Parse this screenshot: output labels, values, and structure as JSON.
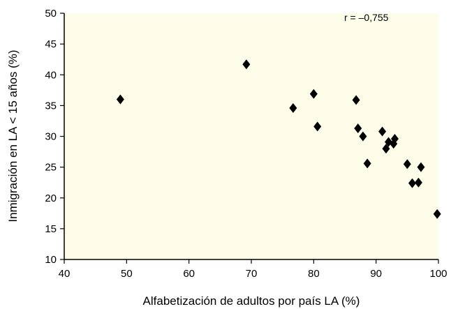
{
  "chart_data": {
    "type": "scatter",
    "title": "",
    "xlabel": "Alfabetización de adultos por país LA (%)",
    "ylabel": "Inmigración en LA < 15 años (%)",
    "xlim": [
      40,
      100
    ],
    "ylim": [
      10,
      50
    ],
    "xticks": [
      "40",
      "50",
      "60",
      "70",
      "80",
      "90",
      "100"
    ],
    "yticks": [
      "10",
      "15",
      "20",
      "25",
      "30",
      "35",
      "40",
      "45",
      "50"
    ],
    "annotation": "r = –0,755",
    "grid": false,
    "marker": "diamond",
    "colors": {
      "plot_background": "#fdfdea",
      "marker": "#000000",
      "axis": "#000000"
    },
    "points": [
      {
        "x": 49.0,
        "y": 36.0
      },
      {
        "x": 69.2,
        "y": 41.7
      },
      {
        "x": 76.7,
        "y": 34.6
      },
      {
        "x": 80.0,
        "y": 36.9
      },
      {
        "x": 80.6,
        "y": 31.6
      },
      {
        "x": 86.8,
        "y": 35.9
      },
      {
        "x": 87.1,
        "y": 31.3
      },
      {
        "x": 87.9,
        "y": 30.0
      },
      {
        "x": 88.6,
        "y": 25.6
      },
      {
        "x": 91.0,
        "y": 30.8
      },
      {
        "x": 91.6,
        "y": 28.0
      },
      {
        "x": 92.0,
        "y": 29.1
      },
      {
        "x": 92.8,
        "y": 28.8
      },
      {
        "x": 93.0,
        "y": 29.6
      },
      {
        "x": 95.0,
        "y": 25.5
      },
      {
        "x": 95.8,
        "y": 22.4
      },
      {
        "x": 96.8,
        "y": 22.5
      },
      {
        "x": 97.2,
        "y": 25.0
      },
      {
        "x": 99.8,
        "y": 17.4
      }
    ]
  }
}
